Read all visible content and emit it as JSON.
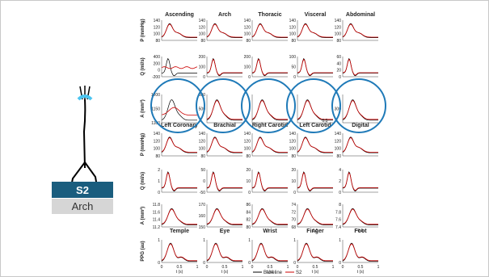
{
  "top_columns": [
    "Ascending",
    "Arch",
    "Thoracic",
    "Visceral",
    "Abdominal"
  ],
  "mid_columns": [
    "Left Coronary",
    "Brachial",
    "Right Carotid",
    "Left Carotid",
    "Digital"
  ],
  "bottom_columns": [
    "Temple",
    "Eye",
    "Wrist",
    "Finger",
    "Foot"
  ],
  "rows": [
    {
      "ylabel": "P (mmHg)",
      "ticks": [
        [
          "140",
          "120",
          "100",
          "80"
        ],
        [
          "140",
          "120",
          "100",
          "80"
        ],
        [
          "140",
          "120",
          "100",
          "80"
        ],
        [
          "140",
          "120",
          "100",
          "80"
        ],
        [
          "140",
          "120",
          "100",
          "80"
        ]
      ]
    },
    {
      "ylabel": "Q (ml/s)",
      "ticks": [
        [
          "400",
          "200",
          "0",
          "-200"
        ],
        [
          "200",
          "100",
          "0"
        ],
        [
          "200",
          "100",
          "0"
        ],
        [
          "100",
          "50",
          "0"
        ],
        [
          "60",
          "40",
          "20",
          "0"
        ]
      ]
    },
    {
      "ylabel": "A (mm²)",
      "ticks": [
        [
          "1200",
          "1150",
          "1100"
        ],
        [
          "600",
          "500",
          ""
        ],
        [
          "",
          ""
        ],
        [
          "",
          ""
        ],
        [
          "",
          "300",
          ""
        ]
      ]
    },
    {
      "ylabel": "P (mmHg)",
      "ticks": [
        [
          "140",
          "120",
          "100",
          "80"
        ],
        [
          "140",
          "120",
          "100",
          "80"
        ],
        [
          "140",
          "120",
          "100",
          "80"
        ],
        [
          "140",
          "120",
          "100",
          "80"
        ],
        [
          "140",
          "120",
          "100",
          "80"
        ]
      ]
    },
    {
      "ylabel": "Q (ml/s)",
      "ticks": [
        [
          "2",
          "1",
          "0"
        ],
        [
          "50",
          "0",
          "-50"
        ],
        [
          "20",
          "10",
          "0"
        ],
        [
          "20",
          "10",
          "0"
        ],
        [
          "4",
          "2",
          "0"
        ]
      ]
    },
    {
      "ylabel": "A (mm²)",
      "ticks": [
        [
          "11.8",
          "11.6",
          "11.4",
          "11.2"
        ],
        [
          "170",
          "160",
          "150"
        ],
        [
          "86",
          "84",
          "82",
          "80"
        ],
        [
          "74",
          "72",
          "70",
          "68"
        ],
        [
          "8",
          "7.8",
          "7.6",
          "7.4"
        ]
      ]
    },
    {
      "ylabel": "PPG (au)",
      "ticks": [
        [
          "1",
          "0"
        ],
        [
          "1",
          "0"
        ],
        [
          "1",
          "0"
        ],
        [
          "1",
          "0"
        ],
        [
          "1",
          "0"
        ]
      ]
    }
  ],
  "x_tick_labels": [
    "0",
    "0.5",
    "1"
  ],
  "x_axis_label": "t (s)",
  "row3_center_tick": "0.5",
  "legend": {
    "baseline": "Baseline",
    "s2": "S2"
  },
  "label_s2": "S2",
  "label_arch": "Arch",
  "colors": {
    "baseline": "#000000",
    "s2": "#cc0000",
    "circle": "#1f7ab8",
    "label_bg": "#1a5d7e"
  }
}
